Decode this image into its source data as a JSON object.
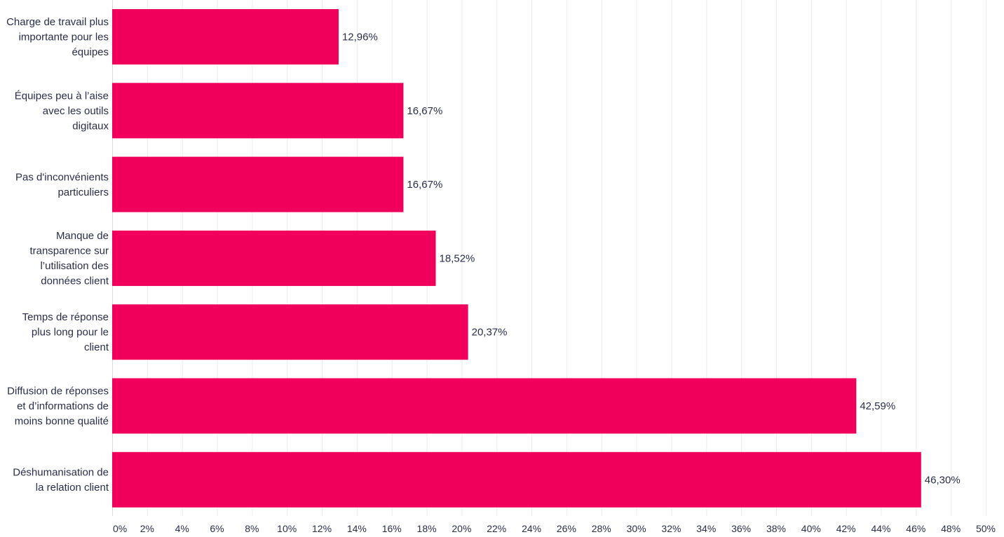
{
  "chart_data": {
    "type": "bar",
    "orientation": "horizontal",
    "title": "",
    "xlabel": "",
    "ylabel": "",
    "xlim": [
      0,
      50
    ],
    "grid": true,
    "bar_color": "#f0005a",
    "categories": [
      [
        "Charge de travail plus",
        "importante pour les",
        "équipes"
      ],
      [
        "Équipes peu à l’aise",
        "avec les outils",
        "digitaux"
      ],
      [
        "Pas d'inconvénients",
        "particuliers"
      ],
      [
        "Manque de",
        "transparence sur",
        "l’utilisation des",
        "données client"
      ],
      [
        "Temps de réponse",
        "plus long pour le",
        "client"
      ],
      [
        "Diffusion de réponses",
        "et d’informations de",
        "moins bonne qualité"
      ],
      [
        "Déshumanisation de",
        "la relation client"
      ]
    ],
    "values": [
      12.96,
      16.67,
      16.67,
      18.52,
      20.37,
      42.59,
      46.3
    ],
    "value_labels": [
      "12,96%",
      "16,67%",
      "16,67%",
      "18,52%",
      "20,37%",
      "42,59%",
      "46,30%"
    ],
    "x_ticks": [
      0,
      2,
      4,
      6,
      8,
      10,
      12,
      14,
      16,
      18,
      20,
      22,
      24,
      26,
      28,
      30,
      32,
      34,
      36,
      38,
      40,
      42,
      44,
      46,
      48,
      50
    ],
    "x_tick_labels": [
      "0%",
      "2%",
      "4%",
      "6%",
      "8%",
      "10%",
      "12%",
      "14%",
      "16%",
      "18%",
      "20%",
      "22%",
      "24%",
      "26%",
      "28%",
      "30%",
      "32%",
      "34%",
      "36%",
      "38%",
      "40%",
      "42%",
      "44%",
      "46%",
      "48%",
      "50%"
    ]
  }
}
